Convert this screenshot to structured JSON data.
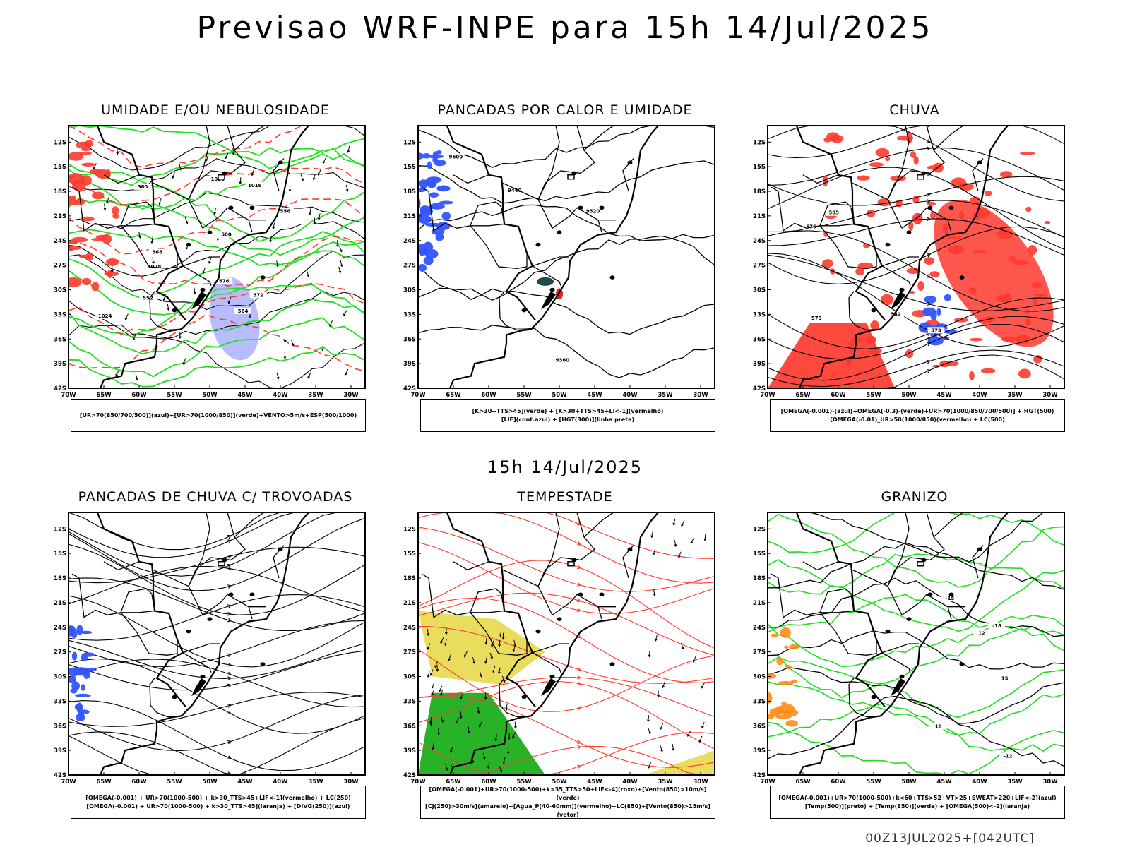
{
  "title": "Previsao WRF-INPE  para 15h 14/Jul/2025",
  "mid_title": "15h 14/Jul/2025",
  "footer": "00Z13JUL2025+[042UTC]",
  "axes": {
    "lat_labels": [
      "12S",
      "15S",
      "18S",
      "21S",
      "24S",
      "27S",
      "30S",
      "33S",
      "36S",
      "39S",
      "42S"
    ],
    "lon_labels": [
      "70W",
      "65W",
      "60W",
      "55W",
      "50W",
      "45W",
      "40W",
      "35W",
      "30W"
    ]
  },
  "colors": {
    "red": "#ff3a2e",
    "green": "#22dd22",
    "blue": "#3355ff",
    "yellow": "#e8d84a",
    "lavender": "#aab0ff",
    "orange": "#ff8c1a",
    "black": "#000000"
  },
  "panels": [
    {
      "title": "UMIDADE E/OU NEBULOSIDADE",
      "legend": [
        "[UR>70(850/700/500)](azul)+[UR>70(1000/850)](verde)+VENTO>5m/s+ESP(500/1000)"
      ],
      "contour_labels": [
        "1016",
        "1020",
        "1024",
        "1028",
        "552",
        "556",
        "560",
        "564",
        "568",
        "572",
        "576",
        "580"
      ]
    },
    {
      "title": "PANCADAS POR CALOR E UMIDADE",
      "legend": [
        "[K>30+TTS>45](verde) + [K>30+TTS>45+LI<-1](vermelho)",
        "[LIF](cont.azul) + [HGT(300)](linha preta)"
      ],
      "contour_labels": [
        "9600",
        "9520",
        "9440",
        "9360"
      ]
    },
    {
      "title": "CHUVA",
      "legend": [
        "[OMEGA(-0.001)-(azul)+OMEGA(-0.3)-(verde)+UR>70(1000/850/700/500)] + HGT(500)",
        "[OMEGA(-0.01)_UR>50(1000/850)(vermelho) + LC(500)"
      ],
      "contour_labels": [
        "573",
        "576",
        "579",
        "582",
        "585"
      ]
    },
    {
      "title": "PANCADAS DE CHUVA C/ TROVOADAS",
      "legend": [
        "[OMEGA(-0.001) + UR>70(1000-500) + k>30_TTS>45+LIF<-1](vermelho) + LC(250)",
        "[OMEGA(-0.001) + UR>70(1000-500) + k>30_TTS>45](laranja) + [DIVG(250)](azul)"
      ],
      "contour_labels": []
    },
    {
      "title": "TEMPESTADE",
      "legend": [
        "[OMEGA(-0.001)+UR>70(1000-500)+k>35_TTS>50+LIF<-4](roxo)+[Vento(850)>10m/s](verde)",
        "[CJ(250)>30m/s](amarelo)+[Agua_P(40-60mm)](vermelho)+LC(850)+[Vento(850)>15m/s](vetor)"
      ],
      "contour_labels": []
    },
    {
      "title": "GRANIZO",
      "legend": [
        "[OMEGA(-0.001)+UR>70(1000-500)+k<60+TTS>52+VT>25+SWEAT>220+LIF<-2](azul)",
        "[Temp(500)](preto) + [Temp(850)](verde) + [OMEGA(500)<-2](laranja)"
      ],
      "contour_labels": [
        "-18",
        "-15",
        "-12",
        "12",
        "15",
        "18"
      ]
    }
  ]
}
